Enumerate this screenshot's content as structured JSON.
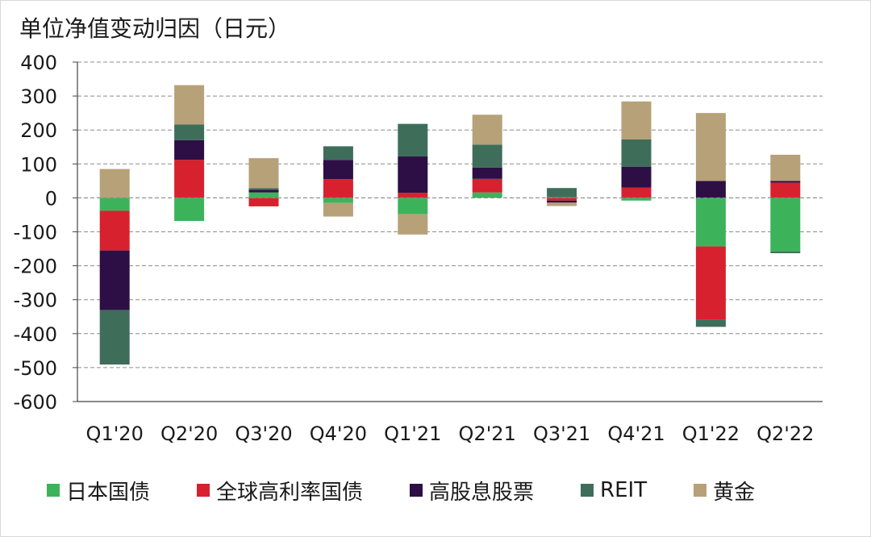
{
  "chart_data": {
    "type": "stacked-bar",
    "title": "单位净值变动归因（日元）",
    "xlabel": "",
    "ylabel": "",
    "ylim": [
      -600,
      400
    ],
    "yticks": [
      400,
      300,
      200,
      100,
      0,
      -100,
      -200,
      -300,
      -400,
      -500,
      -600
    ],
    "grid": true,
    "legend_position": "bottom",
    "categories": [
      "Q1'20",
      "Q2'20",
      "Q3'20",
      "Q4'20",
      "Q1'21",
      "Q2'21",
      "Q3'21",
      "Q4'21",
      "Q1'22",
      "Q2'22"
    ],
    "series": [
      {
        "name": "日本国债",
        "color": "#3cb35a",
        "values": [
          -38,
          -68,
          16,
          -15,
          -48,
          16,
          2,
          -8,
          -143,
          -158
        ]
      },
      {
        "name": "全球高利率国债",
        "color": "#d7212f",
        "values": [
          -117,
          112,
          -25,
          55,
          15,
          40,
          -8,
          30,
          -215,
          45
        ]
      },
      {
        "name": "高股息股票",
        "color": "#2d0f45",
        "values": [
          -176,
          58,
          8,
          57,
          107,
          33,
          -6,
          62,
          50,
          5
        ]
      },
      {
        "name": "REIT",
        "color": "#3e6e5a",
        "values": [
          -160,
          46,
          5,
          40,
          96,
          68,
          27,
          80,
          -22,
          -5
        ]
      },
      {
        "name": "黄金",
        "color": "#b7a178",
        "values": [
          85,
          116,
          88,
          -40,
          -60,
          88,
          -10,
          112,
          200,
          77
        ]
      }
    ]
  }
}
